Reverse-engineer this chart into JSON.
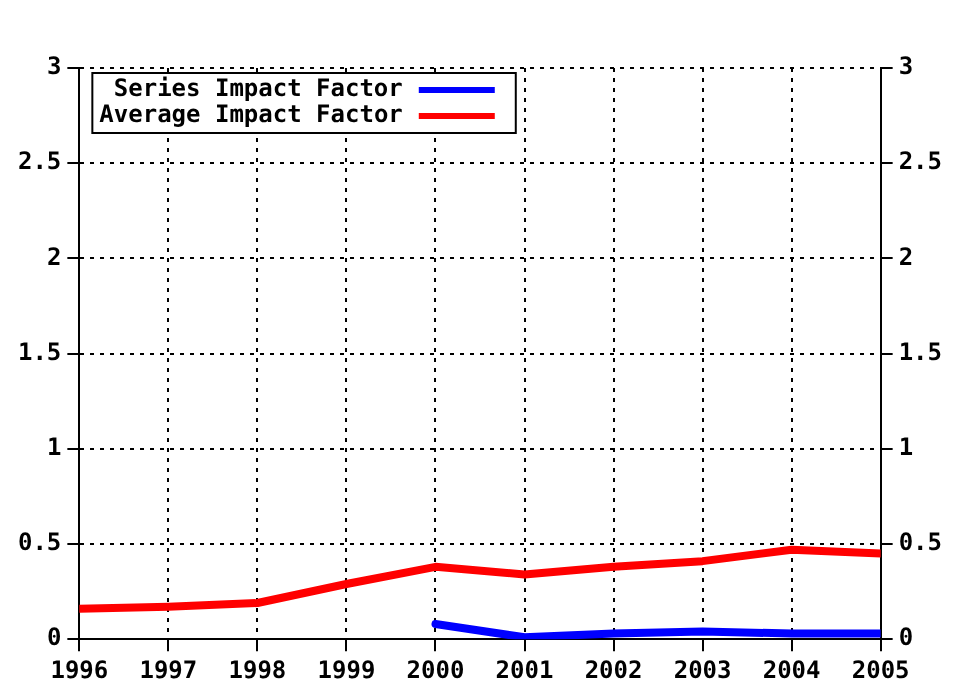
{
  "chart_data": {
    "type": "line",
    "x": [
      1996,
      1997,
      1998,
      1999,
      2000,
      2001,
      2002,
      2003,
      2004,
      2005
    ],
    "series": [
      {
        "name": "Series Impact Factor",
        "color": "#0000ff",
        "values": [
          null,
          null,
          null,
          null,
          0.08,
          0.01,
          0.03,
          0.04,
          0.03,
          0.03
        ]
      },
      {
        "name": "Average Impact Factor",
        "color": "#ff0000",
        "values": [
          0.16,
          0.17,
          0.19,
          0.29,
          0.38,
          0.34,
          0.38,
          0.41,
          0.47,
          0.45
        ]
      }
    ],
    "xlim": [
      1996,
      2005
    ],
    "xticks": [
      1996,
      1997,
      1998,
      1999,
      2000,
      2001,
      2002,
      2003,
      2004,
      2005
    ],
    "ylim": [
      0,
      3
    ],
    "yticks": [
      0,
      0.5,
      1,
      1.5,
      2,
      2.5,
      3
    ],
    "y2lim": [
      0,
      3
    ],
    "y2ticks": [
      0,
      0.5,
      1,
      1.5,
      2,
      2.5,
      3
    ],
    "grid": true,
    "legend": "top left",
    "marker": "none",
    "line_style": "solid"
  }
}
